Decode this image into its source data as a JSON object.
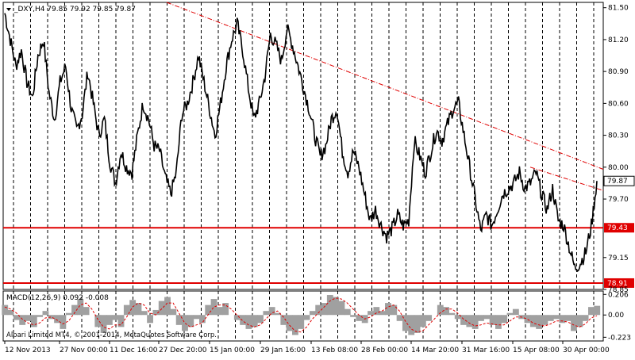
{
  "header": {
    "symbol_line": "_DXY,H4  79.85 79.92 79.85 79.87"
  },
  "macd": {
    "label": "MACD(12,26,9) 0.092 -0.008",
    "scale_labels": [
      "0.206",
      "0.00",
      "-0.223"
    ],
    "ylim": [
      -0.26,
      0.24
    ]
  },
  "copyright": "Alpari Limited MT4, © 2001-2014, MetaQuotes Software Corp.",
  "colors": {
    "price_line": "#000000",
    "support_line": "#e00000",
    "trend_line": "#e00000",
    "label_bg": "#e00000",
    "current_label_border": "#000000",
    "grid": "#000000",
    "macd_hist": "#a0a0a0",
    "macd_signal": "#e00000"
  },
  "chart_data": {
    "type": "line",
    "title": "",
    "instrument": "_DXY",
    "timeframe": "H4",
    "ylim": [
      78.85,
      81.55
    ],
    "y_ticks": [
      81.5,
      81.2,
      80.9,
      80.6,
      80.3,
      80.0,
      79.7,
      79.43,
      79.15,
      78.91,
      78.85
    ],
    "y_tick_labels": [
      "81.50",
      "81.20",
      "80.90",
      "80.60",
      "80.30",
      "80.00",
      "79.70",
      "79.43",
      "79.15",
      "78.91",
      "78.85"
    ],
    "x_tick_labels": [
      "12 Nov 2013",
      "27 Nov 00:00",
      "11 Dec 16:00",
      "27 Dec 20:00",
      "15 Jan 00:00",
      "29 Jan 16:00",
      "13 Feb 08:00",
      "28 Feb 00:00",
      "14 Mar 20:00",
      "31 Mar 16:00",
      "15 Apr 08:00",
      "30 Apr 00:00"
    ],
    "grid": "vertical dashed",
    "support_levels": [
      {
        "value": 79.43,
        "label": "79.43"
      },
      {
        "value": 78.91,
        "label": "78.91"
      }
    ],
    "current_price": {
      "value": 79.87,
      "label": "79.87"
    },
    "trend_line": {
      "start": 81.55,
      "end": 79.98,
      "style": "dash-dot"
    },
    "trend_line_2": {
      "start": 80.0,
      "end": 79.78,
      "style": "dash-dot"
    },
    "price_series": [
      81.45,
      81.2,
      80.95,
      81.1,
      80.8,
      80.65,
      81.05,
      81.2,
      80.7,
      80.45,
      80.8,
      80.95,
      80.55,
      80.35,
      80.5,
      80.9,
      80.6,
      80.3,
      80.45,
      80.05,
      79.85,
      80.15,
      80.0,
      79.95,
      80.3,
      80.6,
      80.45,
      80.2,
      80.15,
      79.9,
      79.75,
      79.95,
      80.5,
      80.6,
      80.8,
      81.05,
      80.8,
      80.55,
      80.3,
      80.6,
      80.95,
      81.2,
      81.35,
      81.1,
      80.75,
      80.45,
      80.6,
      80.85,
      81.25,
      81.15,
      81.0,
      81.3,
      81.15,
      80.95,
      80.75,
      80.55,
      80.3,
      80.1,
      80.2,
      80.45,
      80.55,
      80.15,
      79.95,
      80.15,
      80.0,
      79.75,
      79.5,
      79.6,
      79.45,
      79.35,
      79.42,
      79.55,
      79.45,
      79.5,
      80.25,
      80.1,
      79.95,
      80.15,
      80.35,
      80.25,
      80.4,
      80.55,
      80.6,
      80.3,
      80.0,
      79.7,
      79.4,
      79.55,
      79.45,
      79.6,
      79.75,
      79.8,
      79.85,
      79.95,
      79.8,
      79.85,
      79.95,
      79.75,
      79.6,
      79.8,
      79.5,
      79.45,
      79.25,
      79.05,
      79.1,
      79.2,
      79.45,
      79.87
    ],
    "macd_hist": [
      0.1,
      0.05,
      -0.05,
      -0.1,
      -0.06,
      -0.12,
      -0.02,
      0.04,
      -0.04,
      -0.08,
      -0.14,
      0.02,
      0.1,
      0.16,
      0.08,
      0.0,
      -0.12,
      -0.18,
      -0.1,
      -0.05,
      -0.12,
      0.1,
      0.15,
      0.12,
      0.04,
      -0.08,
      0.05,
      0.14,
      0.18,
      0.06,
      -0.1,
      -0.16,
      -0.12,
      -0.04,
      -0.08,
      0.1,
      0.16,
      0.08,
      0.12,
      0.0,
      -0.05,
      -0.1,
      -0.14,
      -0.12,
      -0.08,
      0.04,
      0.08,
      0.02,
      -0.1,
      -0.16,
      -0.2,
      -0.14,
      -0.05,
      0.04,
      0.1,
      0.12,
      0.2,
      0.18,
      0.14,
      0.06,
      -0.02,
      -0.06,
      -0.08,
      0.04,
      0.08,
      0.04,
      0.12,
      0.1,
      -0.06,
      -0.16,
      -0.2,
      -0.18,
      -0.12,
      -0.06,
      0.0,
      0.1,
      0.08,
      0.02,
      -0.04,
      -0.1,
      -0.12,
      -0.14,
      -0.06,
      -0.04,
      -0.1,
      -0.14,
      -0.08,
      0.02,
      0.06,
      -0.04,
      -0.08,
      -0.12,
      -0.14,
      -0.1,
      -0.06,
      -0.04,
      -0.08,
      -0.06,
      -0.16,
      -0.12,
      -0.06,
      0.08,
      0.092
    ],
    "macd_signal": [
      0.08,
      0.06,
      0.02,
      -0.04,
      -0.08,
      -0.1,
      -0.08,
      -0.03,
      -0.02,
      -0.05,
      -0.09,
      -0.06,
      0.02,
      0.1,
      0.12,
      0.06,
      -0.04,
      -0.12,
      -0.14,
      -0.1,
      -0.1,
      -0.02,
      0.08,
      0.12,
      0.1,
      0.02,
      0.0,
      0.06,
      0.12,
      0.12,
      0.02,
      -0.08,
      -0.12,
      -0.1,
      -0.08,
      0.0,
      0.08,
      0.1,
      0.1,
      0.06,
      0.0,
      -0.06,
      -0.1,
      -0.12,
      -0.1,
      -0.04,
      0.02,
      0.04,
      -0.02,
      -0.1,
      -0.16,
      -0.17,
      -0.12,
      -0.04,
      0.02,
      0.08,
      0.14,
      0.17,
      0.16,
      0.12,
      0.06,
      0.0,
      -0.04,
      -0.02,
      0.02,
      0.04,
      0.08,
      0.1,
      0.04,
      -0.06,
      -0.14,
      -0.17,
      -0.16,
      -0.1,
      -0.04,
      0.02,
      0.06,
      0.06,
      0.02,
      -0.04,
      -0.08,
      -0.11,
      -0.1,
      -0.08,
      -0.09,
      -0.1,
      -0.1,
      -0.06,
      -0.02,
      -0.02,
      -0.04,
      -0.08,
      -0.1,
      -0.11,
      -0.09,
      -0.06,
      -0.06,
      -0.07,
      -0.1,
      -0.12,
      -0.09,
      -0.03,
      -0.008
    ]
  }
}
